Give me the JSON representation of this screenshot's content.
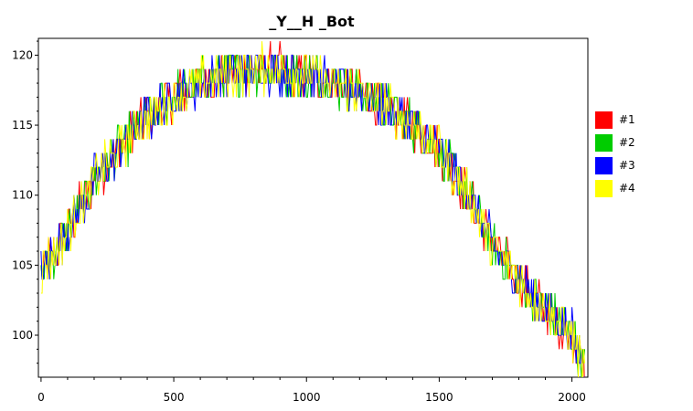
{
  "chart_data": {
    "type": "line",
    "title": "_Y__H _Bot",
    "xlabel": "",
    "ylabel": "",
    "xlim": [
      -10,
      2060
    ],
    "ylim": [
      97,
      121.2
    ],
    "x_ticks": [
      0,
      500,
      1000,
      1500,
      2000
    ],
    "y_ticks": [
      100,
      105,
      110,
      115,
      120
    ],
    "grid": false,
    "legend_position": "right",
    "series": [
      {
        "name": "#1",
        "color": "#ff0000"
      },
      {
        "name": "#2",
        "color": "#00cc00"
      },
      {
        "name": "#3",
        "color": "#0000ff"
      },
      {
        "name": "#4",
        "color": "#ffff00"
      }
    ],
    "x_range": [
      0,
      2050
    ],
    "trend": [
      [
        0,
        104.5
      ],
      [
        100,
        107.5
      ],
      [
        200,
        111
      ],
      [
        300,
        113.5
      ],
      [
        400,
        115.5
      ],
      [
        500,
        117
      ],
      [
        600,
        118
      ],
      [
        700,
        118.6
      ],
      [
        800,
        119
      ],
      [
        900,
        119
      ],
      [
        1000,
        118.6
      ],
      [
        1100,
        118
      ],
      [
        1200,
        117.4
      ],
      [
        1300,
        116.3
      ],
      [
        1400,
        115
      ],
      [
        1500,
        113.3
      ],
      [
        1600,
        110.3
      ],
      [
        1700,
        106.5
      ],
      [
        1800,
        104
      ],
      [
        1900,
        101.8
      ],
      [
        2000,
        100
      ],
      [
        2050,
        97.5
      ]
    ]
  },
  "legend": {
    "items": [
      "#1",
      "#2",
      "#3",
      "#4"
    ]
  }
}
